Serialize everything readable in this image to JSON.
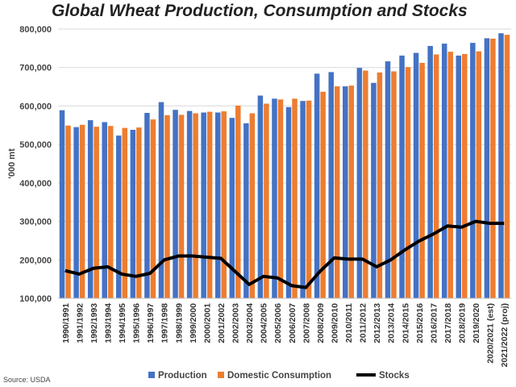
{
  "chart_data": {
    "type": "bar",
    "title": "Global Wheat Production, Consumption and Stocks",
    "ylabel": "'000 mt",
    "xlabel": "",
    "ylim": [
      100000,
      800000
    ],
    "yticks": [
      "100,000",
      "200,000",
      "300,000",
      "400,000",
      "500,000",
      "600,000",
      "700,000",
      "800,000"
    ],
    "grid": true,
    "legend_position": "bottom",
    "source": "Source: USDA",
    "categories": [
      "1990/1991",
      "1991/1992",
      "1992/1993",
      "1993/1994",
      "1994/1995",
      "1995/1996",
      "1996/1997",
      "1997/1998",
      "1998/1999",
      "1999/2000",
      "2000/2001",
      "2001/2002",
      "2002/2003",
      "2003/2004",
      "2004/2005",
      "2005/2006",
      "2006/2007",
      "2007/2008",
      "2008/2009",
      "2009/2010",
      "2010/2011",
      "2011/2012",
      "2012/2013",
      "2013/2014",
      "2014/2015",
      "2015/2016",
      "2016/2017",
      "2017/2018",
      "2018/2019",
      "2019/2020",
      "2020/2021 (est)",
      "2021/2022 (proj)"
    ],
    "series": [
      {
        "name": "Production",
        "type": "bar",
        "color": "#4472C4",
        "values": [
          589000,
          545000,
          563000,
          558000,
          523000,
          538000,
          582000,
          610000,
          590000,
          587000,
          583000,
          583000,
          569000,
          555000,
          627000,
          619000,
          597000,
          613000,
          684000,
          688000,
          651000,
          699000,
          660000,
          716000,
          731000,
          738000,
          756000,
          762000,
          731000,
          764000,
          776000,
          789000
        ]
      },
      {
        "name": "Domestic Consumption",
        "type": "bar",
        "color": "#ED7D31",
        "values": [
          549000,
          551000,
          546000,
          548000,
          543000,
          544000,
          565000,
          576000,
          577000,
          581000,
          585000,
          586000,
          601000,
          581000,
          606000,
          617000,
          619000,
          614000,
          637000,
          651000,
          653000,
          692000,
          687000,
          690000,
          701000,
          712000,
          734000,
          741000,
          735000,
          742000,
          775000,
          785000
        ]
      },
      {
        "name": "Stocks",
        "type": "line",
        "color": "#000000",
        "values": [
          172000,
          163000,
          178000,
          182000,
          163000,
          157000,
          165000,
          200000,
          210000,
          210000,
          207000,
          204000,
          170000,
          136000,
          157000,
          153000,
          133000,
          128000,
          170000,
          205000,
          202000,
          202000,
          182000,
          200000,
          226000,
          249000,
          267000,
          288000,
          285000,
          300000,
          295000,
          295000
        ]
      }
    ]
  }
}
